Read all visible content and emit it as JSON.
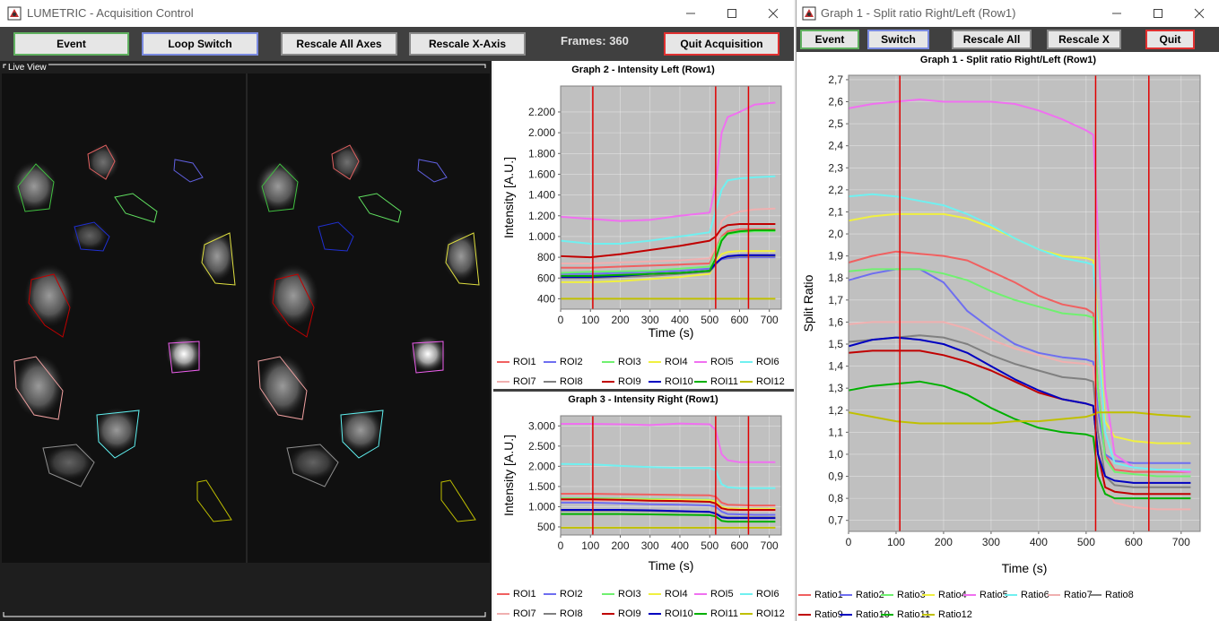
{
  "left_window": {
    "title": "LUMETRIC - Acquisition Control",
    "toolbar": {
      "event_label": "Event",
      "loop_switch_label": "Loop Switch",
      "rescale_all_label": "Rescale All Axes",
      "rescale_x_label": "Rescale X-Axis",
      "frames_label": "Frames: 360",
      "quit_label": "Quit Acquisition"
    },
    "live_view_label": "Live View"
  },
  "right_window": {
    "title": "Graph 1 - Split ratio Right/Left (Row1)",
    "toolbar": {
      "event_label": "Event",
      "switch_label": "Switch",
      "rescale_all_label": "Rescale All",
      "rescale_x_label": "Rescale X",
      "quit_label": "Quit"
    }
  },
  "colors": {
    "roi1": "#f06060",
    "roi2": "#6e6ef0",
    "roi3": "#70f070",
    "roi4": "#f0f040",
    "roi5": "#f070f0",
    "roi6": "#70f0f0",
    "roi7": "#f0b0b0",
    "roi8": "#808080",
    "roi9": "#c00000",
    "roi10": "#0000c0",
    "roi11": "#00b000",
    "roi12": "#c0c000",
    "event_line": "#e00000",
    "plot_bg": "#c0c0c0",
    "toolbar_bg": "#404040"
  },
  "chart_data": [
    {
      "type": "line",
      "title": "Graph 2 - Intensity Left (Row1)",
      "xlabel": "Time (s)",
      "ylabel": "Intensity [A.U.]",
      "xlim": [
        0,
        740
      ],
      "ylim": [
        300,
        2450
      ],
      "xticks": [
        "0",
        "100",
        "200",
        "300",
        "400",
        "500",
        "600",
        "700"
      ],
      "yticks": [
        "400",
        "600",
        "800",
        "1.000",
        "1.200",
        "1.400",
        "1.600",
        "1.800",
        "2.000",
        "2.200"
      ],
      "event_lines": [
        108,
        520,
        630
      ],
      "x": [
        0,
        100,
        200,
        300,
        400,
        500,
        520,
        540,
        560,
        600,
        650,
        720
      ],
      "series": [
        {
          "name": "ROI1",
          "color": "#f06060",
          "values": [
            700,
            700,
            710,
            720,
            730,
            740,
            880,
            1000,
            1050,
            1070,
            1070,
            1070
          ]
        },
        {
          "name": "ROI2",
          "color": "#6e6ef0",
          "values": [
            640,
            640,
            650,
            660,
            670,
            690,
            760,
            780,
            790,
            800,
            800,
            800
          ]
        },
        {
          "name": "ROI3",
          "color": "#70f070",
          "values": [
            650,
            660,
            665,
            670,
            690,
            710,
            860,
            990,
            1020,
            1040,
            1050,
            1050
          ]
        },
        {
          "name": "ROI4",
          "color": "#f0f040",
          "values": [
            560,
            560,
            570,
            590,
            610,
            640,
            760,
            830,
            850,
            860,
            860,
            860
          ]
        },
        {
          "name": "ROI5",
          "color": "#f070f0",
          "values": [
            1190,
            1170,
            1150,
            1160,
            1200,
            1230,
            1500,
            2000,
            2150,
            2200,
            2270,
            2290
          ]
        },
        {
          "name": "ROI6",
          "color": "#70f0f0",
          "values": [
            960,
            930,
            930,
            960,
            1000,
            1040,
            1250,
            1450,
            1540,
            1560,
            1570,
            1580
          ]
        },
        {
          "name": "ROI7",
          "color": "#f0b0b0",
          "values": [
            740,
            740,
            750,
            760,
            770,
            790,
            900,
            1150,
            1200,
            1240,
            1260,
            1270
          ]
        },
        {
          "name": "ROI8",
          "color": "#808080",
          "values": [
            600,
            600,
            610,
            620,
            640,
            660,
            730,
            790,
            800,
            810,
            810,
            810
          ]
        },
        {
          "name": "ROI9",
          "color": "#c00000",
          "values": [
            810,
            800,
            830,
            870,
            910,
            960,
            1000,
            1080,
            1110,
            1120,
            1120,
            1120
          ]
        },
        {
          "name": "ROI10",
          "color": "#0000c0",
          "values": [
            610,
            610,
            620,
            640,
            650,
            670,
            740,
            790,
            810,
            820,
            820,
            820
          ]
        },
        {
          "name": "ROI11",
          "color": "#00b000",
          "values": [
            620,
            620,
            630,
            640,
            650,
            670,
            790,
            960,
            1030,
            1050,
            1060,
            1060
          ]
        },
        {
          "name": "ROI12",
          "color": "#c0c000",
          "values": [
            400,
            400,
            400,
            400,
            400,
            400,
            400,
            400,
            400,
            400,
            400,
            400
          ]
        }
      ]
    },
    {
      "type": "line",
      "title": "Graph 3 - Intensity Right (Row1)",
      "xlabel": "Time (s)",
      "ylabel": "Intensity [A.U.]",
      "xlim": [
        0,
        740
      ],
      "ylim": [
        300,
        3250
      ],
      "xticks": [
        "0",
        "100",
        "200",
        "300",
        "400",
        "500",
        "600",
        "700"
      ],
      "yticks": [
        "500",
        "1.000",
        "1.500",
        "2.000",
        "2.500",
        "3.000"
      ],
      "event_lines": [
        108,
        520,
        630
      ],
      "x": [
        0,
        100,
        200,
        300,
        400,
        500,
        520,
        540,
        560,
        600,
        650,
        720
      ],
      "series": [
        {
          "name": "ROI1",
          "color": "#f06060",
          "values": [
            1320,
            1320,
            1310,
            1300,
            1290,
            1280,
            1250,
            1100,
            1050,
            1040,
            1030,
            1030
          ]
        },
        {
          "name": "ROI2",
          "color": "#6e6ef0",
          "values": [
            1100,
            1100,
            1080,
            1060,
            1050,
            1030,
            1000,
            880,
            820,
            810,
            800,
            800
          ]
        },
        {
          "name": "ROI3",
          "color": "#70f070",
          "values": [
            1210,
            1210,
            1200,
            1190,
            1180,
            1170,
            1140,
            990,
            950,
            940,
            940,
            940
          ]
        },
        {
          "name": "ROI4",
          "color": "#f0f040",
          "values": [
            1180,
            1180,
            1180,
            1170,
            1170,
            1160,
            1130,
            990,
            960,
            950,
            950,
            950
          ]
        },
        {
          "name": "ROI5",
          "color": "#f070f0",
          "values": [
            3050,
            3050,
            3040,
            3020,
            3060,
            3040,
            2900,
            2300,
            2150,
            2100,
            2100,
            2100
          ]
        },
        {
          "name": "ROI6",
          "color": "#70f0f0",
          "values": [
            2060,
            2050,
            2010,
            1980,
            1960,
            1960,
            1900,
            1560,
            1480,
            1460,
            1460,
            1460
          ]
        },
        {
          "name": "ROI7",
          "color": "#f0b0b0",
          "values": [
            1160,
            1150,
            1150,
            1140,
            1130,
            1120,
            1080,
            940,
            910,
            910,
            900,
            900
          ]
        },
        {
          "name": "ROI8",
          "color": "#808080",
          "values": [
            900,
            900,
            900,
            890,
            880,
            870,
            840,
            760,
            740,
            740,
            740,
            740
          ]
        },
        {
          "name": "ROI9",
          "color": "#c00000",
          "values": [
            1180,
            1180,
            1170,
            1150,
            1140,
            1120,
            1080,
            960,
            930,
            920,
            920,
            920
          ]
        },
        {
          "name": "ROI10",
          "color": "#0000c0",
          "values": [
            920,
            920,
            920,
            910,
            890,
            870,
            830,
            740,
            720,
            720,
            720,
            720
          ]
        },
        {
          "name": "ROI11",
          "color": "#00b000",
          "values": [
            820,
            820,
            820,
            810,
            800,
            790,
            760,
            650,
            630,
            630,
            630,
            630
          ]
        },
        {
          "name": "ROI12",
          "color": "#c0c000",
          "values": [
            480,
            480,
            480,
            480,
            480,
            480,
            480,
            480,
            480,
            480,
            480,
            480
          ]
        }
      ]
    },
    {
      "type": "line",
      "title": "Graph 1 - Split ratio Right/Left (Row1)",
      "xlabel": "Time (s)",
      "ylabel": "Split Ratio",
      "xlim": [
        0,
        740
      ],
      "ylim": [
        0.65,
        2.72
      ],
      "xticks": [
        "0",
        "100",
        "200",
        "300",
        "400",
        "500",
        "600",
        "700"
      ],
      "yticks": [
        "0,7",
        "0,8",
        "0,9",
        "1,0",
        "1,1",
        "1,2",
        "1,3",
        "1,4",
        "1,5",
        "1,6",
        "1,7",
        "1,8",
        "1,9",
        "2,0",
        "2,1",
        "2,2",
        "2,3",
        "2,4",
        "2,5",
        "2,6",
        "2,7"
      ],
      "event_lines": [
        108,
        520,
        632
      ],
      "x": [
        0,
        50,
        100,
        150,
        200,
        250,
        300,
        350,
        400,
        450,
        500,
        515,
        525,
        540,
        560,
        600,
        650,
        720
      ],
      "series": [
        {
          "name": "Ratio1",
          "color": "#f06060",
          "values": [
            1.87,
            1.9,
            1.92,
            1.91,
            1.9,
            1.88,
            1.83,
            1.78,
            1.72,
            1.68,
            1.66,
            1.64,
            1.3,
            1.0,
            0.93,
            0.92,
            0.92,
            0.92
          ]
        },
        {
          "name": "Ratio2",
          "color": "#6e6ef0",
          "values": [
            1.79,
            1.82,
            1.84,
            1.84,
            1.78,
            1.65,
            1.57,
            1.5,
            1.46,
            1.44,
            1.43,
            1.42,
            1.2,
            1.0,
            0.97,
            0.96,
            0.96,
            0.96
          ]
        },
        {
          "name": "Ratio3",
          "color": "#70f070",
          "values": [
            1.83,
            1.84,
            1.84,
            1.84,
            1.82,
            1.79,
            1.74,
            1.7,
            1.67,
            1.64,
            1.63,
            1.62,
            1.3,
            0.98,
            0.92,
            0.91,
            0.9,
            0.9
          ]
        },
        {
          "name": "Ratio4",
          "color": "#f0f040",
          "values": [
            2.06,
            2.08,
            2.09,
            2.09,
            2.09,
            2.07,
            2.03,
            1.98,
            1.93,
            1.9,
            1.89,
            1.88,
            1.6,
            1.15,
            1.08,
            1.06,
            1.05,
            1.05
          ]
        },
        {
          "name": "Ratio5",
          "color": "#f070f0",
          "values": [
            2.57,
            2.59,
            2.6,
            2.61,
            2.6,
            2.6,
            2.6,
            2.59,
            2.56,
            2.52,
            2.47,
            2.45,
            2.0,
            1.3,
            1.0,
            0.94,
            0.93,
            0.92
          ]
        },
        {
          "name": "Ratio6",
          "color": "#70f0f0",
          "values": [
            2.17,
            2.18,
            2.17,
            2.15,
            2.13,
            2.09,
            2.04,
            1.98,
            1.93,
            1.89,
            1.87,
            1.86,
            1.55,
            1.1,
            0.96,
            0.94,
            0.93,
            0.93
          ]
        },
        {
          "name": "Ratio7",
          "color": "#f0b0b0",
          "values": [
            1.59,
            1.6,
            1.6,
            1.6,
            1.6,
            1.57,
            1.52,
            1.48,
            1.45,
            1.42,
            1.41,
            1.4,
            1.1,
            0.85,
            0.78,
            0.76,
            0.75,
            0.75
          ]
        },
        {
          "name": "Ratio8",
          "color": "#808080",
          "values": [
            1.51,
            1.52,
            1.53,
            1.54,
            1.53,
            1.5,
            1.45,
            1.41,
            1.38,
            1.35,
            1.34,
            1.33,
            1.1,
            0.9,
            0.86,
            0.85,
            0.85,
            0.85
          ]
        },
        {
          "name": "Ratio9",
          "color": "#c00000",
          "values": [
            1.46,
            1.47,
            1.47,
            1.47,
            1.45,
            1.42,
            1.38,
            1.33,
            1.28,
            1.25,
            1.23,
            1.22,
            1.0,
            0.85,
            0.83,
            0.82,
            0.82,
            0.82
          ]
        },
        {
          "name": "Ratio10",
          "color": "#0000c0",
          "values": [
            1.49,
            1.52,
            1.53,
            1.52,
            1.5,
            1.46,
            1.4,
            1.34,
            1.29,
            1.25,
            1.23,
            1.22,
            1.0,
            0.9,
            0.88,
            0.87,
            0.87,
            0.87
          ]
        },
        {
          "name": "Ratio11",
          "color": "#00b000",
          "values": [
            1.29,
            1.31,
            1.32,
            1.33,
            1.31,
            1.27,
            1.21,
            1.16,
            1.12,
            1.1,
            1.09,
            1.08,
            0.9,
            0.82,
            0.8,
            0.8,
            0.8,
            0.8
          ]
        },
        {
          "name": "Ratio12",
          "color": "#c0c000",
          "values": [
            1.19,
            1.17,
            1.15,
            1.14,
            1.14,
            1.14,
            1.14,
            1.15,
            1.15,
            1.16,
            1.17,
            1.18,
            1.19,
            1.19,
            1.19,
            1.19,
            1.18,
            1.17
          ]
        }
      ]
    }
  ]
}
